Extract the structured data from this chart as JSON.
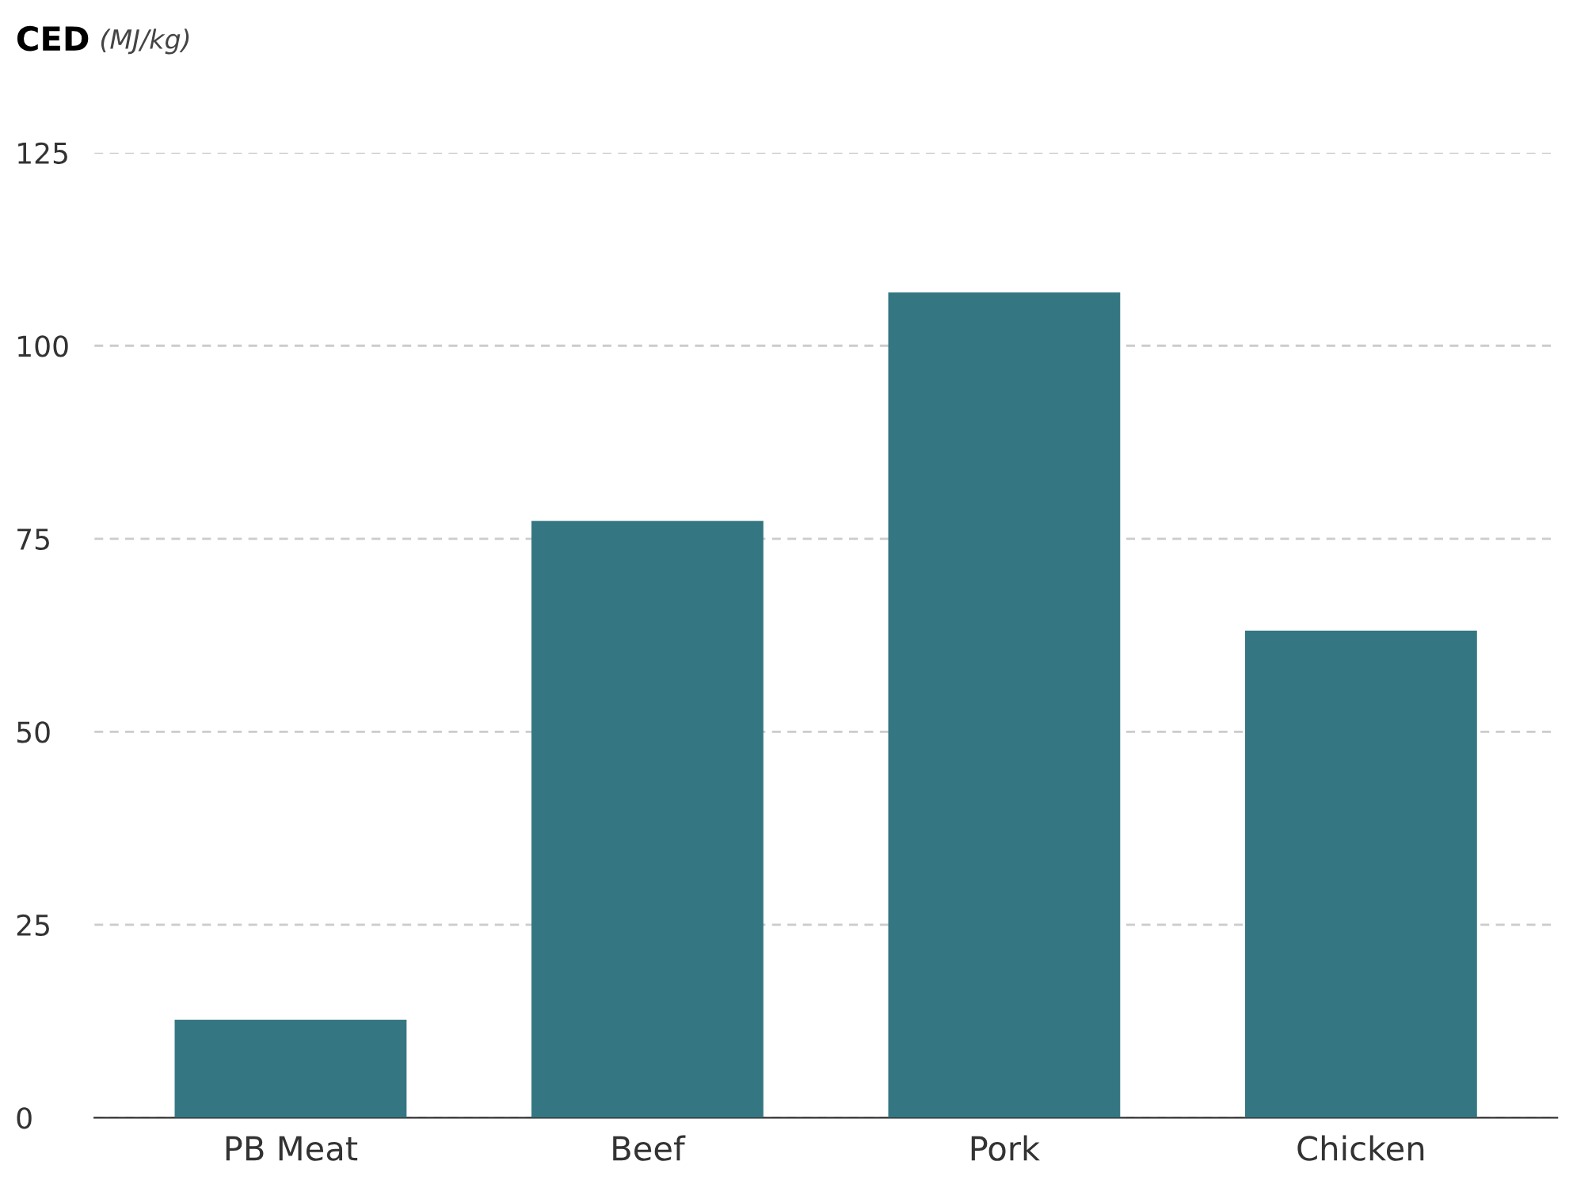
{
  "chart_data": {
    "type": "bar",
    "title": "CED",
    "ylabel": "(MJ/kg)",
    "categories": [
      "PB Meat",
      "Beef",
      "Pork",
      "Chicken"
    ],
    "values": [
      12.7,
      77.3,
      106.9,
      63.1
    ],
    "color": "#347782",
    "ylim": [
      0,
      125
    ],
    "yticks": [
      0,
      25,
      50,
      75,
      100,
      125
    ],
    "grid": "y",
    "legend": false
  }
}
